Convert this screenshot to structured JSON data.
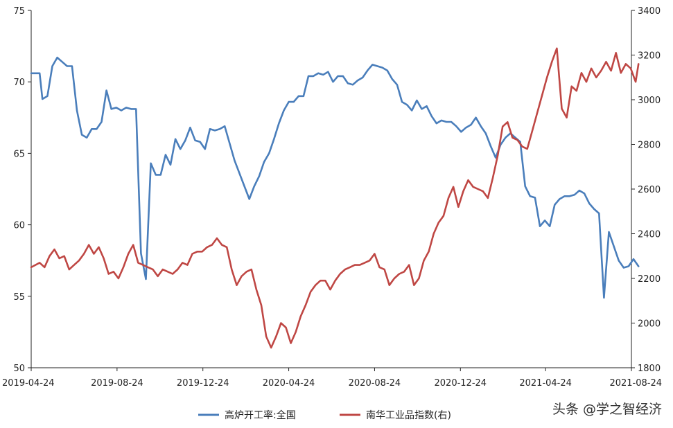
{
  "chart_data": {
    "type": "line",
    "title": "",
    "xlabel": "",
    "ylabel_left": "",
    "ylabel_right": "",
    "x_tick_labels": [
      "2019-04-24",
      "2019-08-24",
      "2019-12-24",
      "2020-04-24",
      "2020-08-24",
      "2020-12-24",
      "2021-04-24",
      "2021-08-24"
    ],
    "y_left": {
      "min": 50,
      "max": 75,
      "ticks": [
        50,
        55,
        60,
        65,
        70,
        75
      ]
    },
    "y_right": {
      "min": 1800,
      "max": 3400,
      "ticks": [
        1800,
        2000,
        2200,
        2400,
        2600,
        2800,
        3000,
        3200,
        3400
      ]
    },
    "legend_position": "bottom",
    "grid": false,
    "series": [
      {
        "name": "高炉开工率:全国",
        "axis": "left",
        "color": "#4a7ebb",
        "points": [
          [
            "2019-04-24",
            70.6
          ],
          [
            "2019-05-06",
            70.6
          ],
          [
            "2019-05-10",
            68.8
          ],
          [
            "2019-05-17",
            69.0
          ],
          [
            "2019-05-24",
            71.1
          ],
          [
            "2019-05-31",
            71.7
          ],
          [
            "2019-06-07",
            71.4
          ],
          [
            "2019-06-14",
            71.1
          ],
          [
            "2019-06-21",
            71.1
          ],
          [
            "2019-06-28",
            68.0
          ],
          [
            "2019-07-05",
            66.3
          ],
          [
            "2019-07-12",
            66.1
          ],
          [
            "2019-07-19",
            66.7
          ],
          [
            "2019-07-26",
            66.7
          ],
          [
            "2019-08-02",
            67.2
          ],
          [
            "2019-08-09",
            69.4
          ],
          [
            "2019-08-16",
            68.1
          ],
          [
            "2019-08-23",
            68.2
          ],
          [
            "2019-08-30",
            68.0
          ],
          [
            "2019-09-06",
            68.2
          ],
          [
            "2019-09-13",
            68.1
          ],
          [
            "2019-09-20",
            68.1
          ],
          [
            "2019-09-27",
            58.0
          ],
          [
            "2019-10-04",
            56.2
          ],
          [
            "2019-10-11",
            64.3
          ],
          [
            "2019-10-18",
            63.5
          ],
          [
            "2019-10-25",
            63.5
          ],
          [
            "2019-11-01",
            64.9
          ],
          [
            "2019-11-08",
            64.2
          ],
          [
            "2019-11-15",
            66.0
          ],
          [
            "2019-11-22",
            65.3
          ],
          [
            "2019-11-29",
            65.9
          ],
          [
            "2019-12-06",
            66.8
          ],
          [
            "2019-12-13",
            65.9
          ],
          [
            "2019-12-20",
            65.8
          ],
          [
            "2019-12-27",
            65.3
          ],
          [
            "2020-01-03",
            66.7
          ],
          [
            "2020-01-10",
            66.6
          ],
          [
            "2020-01-17",
            66.7
          ],
          [
            "2020-01-24",
            66.9
          ],
          [
            "2020-02-07",
            64.5
          ],
          [
            "2020-02-21",
            62.7
          ],
          [
            "2020-02-28",
            61.8
          ],
          [
            "2020-03-06",
            62.7
          ],
          [
            "2020-03-13",
            63.4
          ],
          [
            "2020-03-20",
            64.4
          ],
          [
            "2020-03-27",
            65.0
          ],
          [
            "2020-04-03",
            66.0
          ],
          [
            "2020-04-10",
            67.1
          ],
          [
            "2020-04-17",
            68.0
          ],
          [
            "2020-04-24",
            68.6
          ],
          [
            "2020-05-01",
            68.6
          ],
          [
            "2020-05-08",
            69.0
          ],
          [
            "2020-05-15",
            69.0
          ],
          [
            "2020-05-22",
            70.4
          ],
          [
            "2020-05-29",
            70.4
          ],
          [
            "2020-06-05",
            70.6
          ],
          [
            "2020-06-12",
            70.5
          ],
          [
            "2020-06-19",
            70.7
          ],
          [
            "2020-06-26",
            70.0
          ],
          [
            "2020-07-03",
            70.4
          ],
          [
            "2020-07-10",
            70.4
          ],
          [
            "2020-07-17",
            69.9
          ],
          [
            "2020-07-24",
            69.8
          ],
          [
            "2020-07-31",
            70.1
          ],
          [
            "2020-08-07",
            70.3
          ],
          [
            "2020-08-14",
            70.8
          ],
          [
            "2020-08-21",
            71.2
          ],
          [
            "2020-08-28",
            71.1
          ],
          [
            "2020-09-04",
            71.0
          ],
          [
            "2020-09-11",
            70.8
          ],
          [
            "2020-09-18",
            70.2
          ],
          [
            "2020-09-25",
            69.8
          ],
          [
            "2020-10-02",
            68.6
          ],
          [
            "2020-10-09",
            68.4
          ],
          [
            "2020-10-16",
            68.0
          ],
          [
            "2020-10-23",
            68.7
          ],
          [
            "2020-10-30",
            68.1
          ],
          [
            "2020-11-06",
            68.3
          ],
          [
            "2020-11-13",
            67.6
          ],
          [
            "2020-11-20",
            67.1
          ],
          [
            "2020-11-27",
            67.3
          ],
          [
            "2020-12-04",
            67.2
          ],
          [
            "2020-12-11",
            67.2
          ],
          [
            "2020-12-18",
            66.9
          ],
          [
            "2020-12-25",
            66.5
          ],
          [
            "2021-01-01",
            66.8
          ],
          [
            "2021-01-08",
            67.0
          ],
          [
            "2021-01-15",
            67.5
          ],
          [
            "2021-01-22",
            66.9
          ],
          [
            "2021-01-29",
            66.4
          ],
          [
            "2021-02-05",
            65.5
          ],
          [
            "2021-02-12",
            64.7
          ],
          [
            "2021-02-19",
            65.6
          ],
          [
            "2021-02-26",
            66.1
          ],
          [
            "2021-03-05",
            66.4
          ],
          [
            "2021-03-12",
            66.1
          ],
          [
            "2021-03-19",
            65.8
          ],
          [
            "2021-03-26",
            62.7
          ],
          [
            "2021-04-02",
            62.0
          ],
          [
            "2021-04-09",
            61.9
          ],
          [
            "2021-04-16",
            59.9
          ],
          [
            "2021-04-23",
            60.3
          ],
          [
            "2021-04-30",
            59.9
          ],
          [
            "2021-05-07",
            61.4
          ],
          [
            "2021-05-14",
            61.8
          ],
          [
            "2021-05-21",
            62.0
          ],
          [
            "2021-05-28",
            62.0
          ],
          [
            "2021-06-04",
            62.1
          ],
          [
            "2021-06-11",
            62.4
          ],
          [
            "2021-06-18",
            62.2
          ],
          [
            "2021-06-25",
            61.5
          ],
          [
            "2021-07-02",
            61.1
          ],
          [
            "2021-07-09",
            60.8
          ],
          [
            "2021-07-16",
            54.9
          ],
          [
            "2021-07-23",
            59.5
          ],
          [
            "2021-07-30",
            58.5
          ],
          [
            "2021-08-06",
            57.5
          ],
          [
            "2021-08-13",
            57.0
          ],
          [
            "2021-08-20",
            57.1
          ],
          [
            "2021-08-27",
            57.6
          ],
          [
            "2021-09-03",
            57.1
          ]
        ]
      },
      {
        "name": "南华工业品指数(右)",
        "axis": "right",
        "color": "#bf4744",
        "points": [
          [
            "2019-04-24",
            2250
          ],
          [
            "2019-05-06",
            2270
          ],
          [
            "2019-05-13",
            2250
          ],
          [
            "2019-05-20",
            2300
          ],
          [
            "2019-05-27",
            2330
          ],
          [
            "2019-06-03",
            2290
          ],
          [
            "2019-06-10",
            2300
          ],
          [
            "2019-06-17",
            2240
          ],
          [
            "2019-06-24",
            2260
          ],
          [
            "2019-07-01",
            2280
          ],
          [
            "2019-07-08",
            2310
          ],
          [
            "2019-07-15",
            2350
          ],
          [
            "2019-07-22",
            2310
          ],
          [
            "2019-07-29",
            2340
          ],
          [
            "2019-08-05",
            2290
          ],
          [
            "2019-08-12",
            2220
          ],
          [
            "2019-08-19",
            2230
          ],
          [
            "2019-08-26",
            2200
          ],
          [
            "2019-09-02",
            2250
          ],
          [
            "2019-09-09",
            2310
          ],
          [
            "2019-09-16",
            2350
          ],
          [
            "2019-09-23",
            2270
          ],
          [
            "2019-09-30",
            2260
          ],
          [
            "2019-10-07",
            2250
          ],
          [
            "2019-10-14",
            2240
          ],
          [
            "2019-10-21",
            2210
          ],
          [
            "2019-10-28",
            2240
          ],
          [
            "2019-11-04",
            2230
          ],
          [
            "2019-11-11",
            2220
          ],
          [
            "2019-11-18",
            2240
          ],
          [
            "2019-11-25",
            2270
          ],
          [
            "2019-12-02",
            2260
          ],
          [
            "2019-12-09",
            2310
          ],
          [
            "2019-12-16",
            2320
          ],
          [
            "2019-12-23",
            2320
          ],
          [
            "2019-12-30",
            2340
          ],
          [
            "2020-01-06",
            2350
          ],
          [
            "2020-01-13",
            2380
          ],
          [
            "2020-01-20",
            2350
          ],
          [
            "2020-01-27",
            2340
          ],
          [
            "2020-02-03",
            2240
          ],
          [
            "2020-02-10",
            2170
          ],
          [
            "2020-02-17",
            2210
          ],
          [
            "2020-02-24",
            2230
          ],
          [
            "2020-03-02",
            2240
          ],
          [
            "2020-03-09",
            2150
          ],
          [
            "2020-03-16",
            2080
          ],
          [
            "2020-03-23",
            1940
          ],
          [
            "2020-03-30",
            1890
          ],
          [
            "2020-04-06",
            1940
          ],
          [
            "2020-04-13",
            2000
          ],
          [
            "2020-04-20",
            1980
          ],
          [
            "2020-04-27",
            1910
          ],
          [
            "2020-05-04",
            1960
          ],
          [
            "2020-05-11",
            2030
          ],
          [
            "2020-05-18",
            2080
          ],
          [
            "2020-05-25",
            2140
          ],
          [
            "2020-06-01",
            2170
          ],
          [
            "2020-06-08",
            2190
          ],
          [
            "2020-06-15",
            2190
          ],
          [
            "2020-06-22",
            2150
          ],
          [
            "2020-06-29",
            2190
          ],
          [
            "2020-07-06",
            2220
          ],
          [
            "2020-07-13",
            2240
          ],
          [
            "2020-07-20",
            2250
          ],
          [
            "2020-07-27",
            2260
          ],
          [
            "2020-08-03",
            2260
          ],
          [
            "2020-08-10",
            2270
          ],
          [
            "2020-08-17",
            2280
          ],
          [
            "2020-08-24",
            2310
          ],
          [
            "2020-08-31",
            2250
          ],
          [
            "2020-09-07",
            2240
          ],
          [
            "2020-09-14",
            2170
          ],
          [
            "2020-09-21",
            2200
          ],
          [
            "2020-09-28",
            2220
          ],
          [
            "2020-10-05",
            2230
          ],
          [
            "2020-10-12",
            2260
          ],
          [
            "2020-10-19",
            2170
          ],
          [
            "2020-10-26",
            2200
          ],
          [
            "2020-11-02",
            2280
          ],
          [
            "2020-11-09",
            2320
          ],
          [
            "2020-11-16",
            2400
          ],
          [
            "2020-11-23",
            2450
          ],
          [
            "2020-11-30",
            2480
          ],
          [
            "2020-12-07",
            2560
          ],
          [
            "2020-12-14",
            2610
          ],
          [
            "2020-12-21",
            2520
          ],
          [
            "2020-12-28",
            2590
          ],
          [
            "2021-01-04",
            2640
          ],
          [
            "2021-01-11",
            2610
          ],
          [
            "2021-01-18",
            2600
          ],
          [
            "2021-01-25",
            2590
          ],
          [
            "2021-02-01",
            2560
          ],
          [
            "2021-02-08",
            2650
          ],
          [
            "2021-02-15",
            2750
          ],
          [
            "2021-02-22",
            2880
          ],
          [
            "2021-03-01",
            2900
          ],
          [
            "2021-03-08",
            2830
          ],
          [
            "2021-03-15",
            2820
          ],
          [
            "2021-03-22",
            2790
          ],
          [
            "2021-03-29",
            2780
          ],
          [
            "2021-04-05",
            2860
          ],
          [
            "2021-04-12",
            2940
          ],
          [
            "2021-04-19",
            3020
          ],
          [
            "2021-04-26",
            3100
          ],
          [
            "2021-05-03",
            3170
          ],
          [
            "2021-05-10",
            3230
          ],
          [
            "2021-05-17",
            2960
          ],
          [
            "2021-05-24",
            2920
          ],
          [
            "2021-05-31",
            3060
          ],
          [
            "2021-06-07",
            3040
          ],
          [
            "2021-06-14",
            3120
          ],
          [
            "2021-06-21",
            3080
          ],
          [
            "2021-06-28",
            3140
          ],
          [
            "2021-07-05",
            3100
          ],
          [
            "2021-07-12",
            3130
          ],
          [
            "2021-07-19",
            3170
          ],
          [
            "2021-07-26",
            3130
          ],
          [
            "2021-08-02",
            3210
          ],
          [
            "2021-08-09",
            3120
          ],
          [
            "2021-08-16",
            3160
          ],
          [
            "2021-08-23",
            3140
          ],
          [
            "2021-08-30",
            3080
          ],
          [
            "2021-09-03",
            3160
          ]
        ]
      }
    ]
  },
  "watermark": "头条 @学之智经济"
}
